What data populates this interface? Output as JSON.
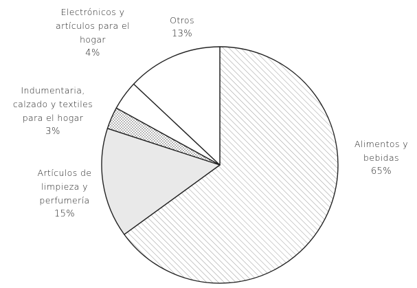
{
  "chart_data": {
    "type": "pie",
    "title": "",
    "slices": [
      {
        "label_lines": [
          "Alimentos y",
          "bebidas"
        ],
        "pct": "65%",
        "value": 65,
        "fill": "hatch-diag"
      },
      {
        "label_lines": [
          "Artículos de",
          "limpieza y",
          "perfumería"
        ],
        "pct": "15%",
        "value": 15,
        "fill": "light-gray"
      },
      {
        "label_lines": [
          "Indumentaria,",
          "calzado y textiles",
          "para el hogar"
        ],
        "pct": "3%",
        "value": 3,
        "fill": "dots"
      },
      {
        "label_lines": [
          "Electrónicos y",
          "artículos para el",
          "hogar"
        ],
        "pct": "4%",
        "value": 4,
        "fill": "white"
      },
      {
        "label_lines": [
          "Otros"
        ],
        "pct": "13%",
        "value": 13,
        "fill": "white"
      }
    ],
    "start": "top",
    "direction": "clockwise"
  },
  "colors": {
    "stroke": "#222222",
    "hatch": "#9a9a9a",
    "light_gray": "#e9e9e9",
    "dots": "#555555"
  }
}
